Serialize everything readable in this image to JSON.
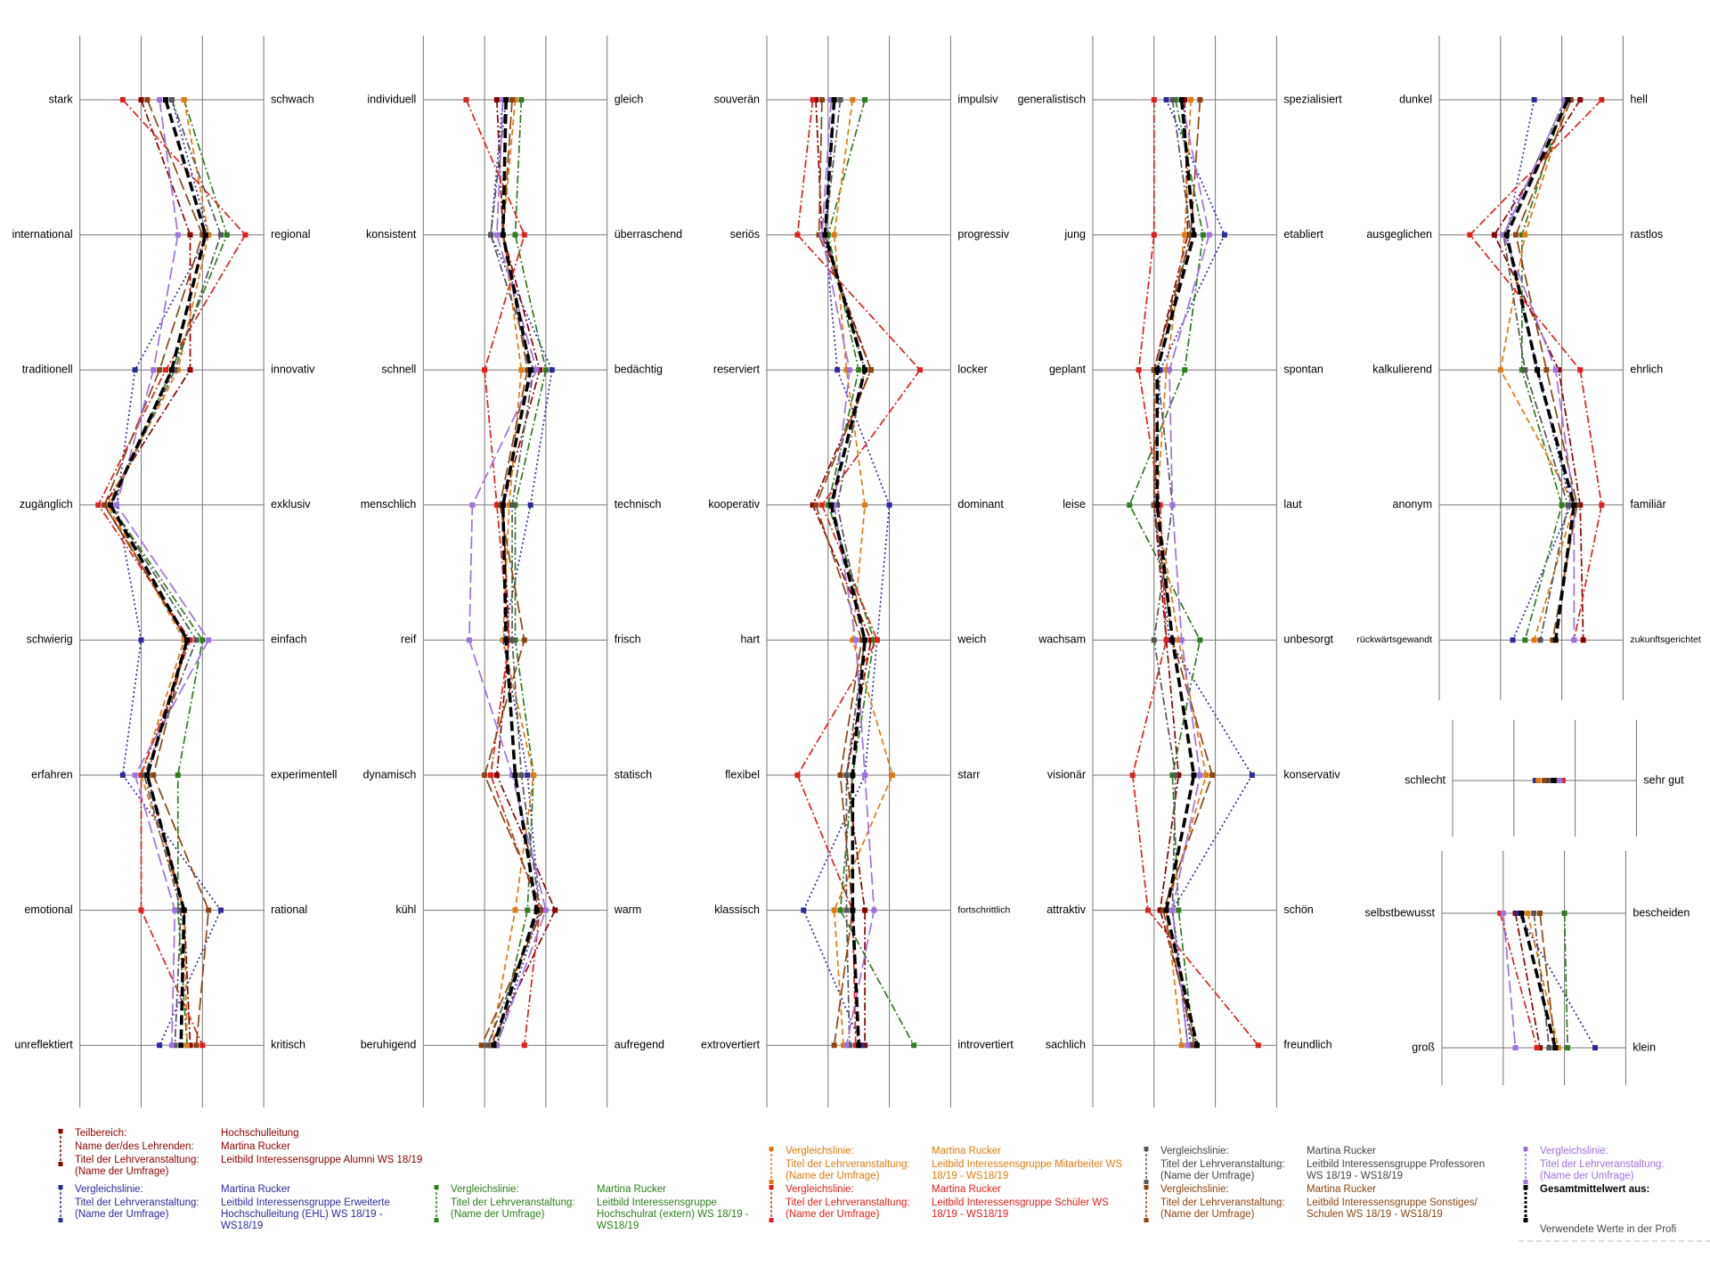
{
  "chart_data": {
    "type": "profile",
    "xlim": [
      1,
      4
    ],
    "xticks": [
      1,
      2,
      3,
      4
    ],
    "grid": true,
    "panels": [
      {
        "left": [
          "stark",
          "international",
          "traditionell",
          "zugänglich",
          "schwierig",
          "erfahren",
          "emotional",
          "unreflektiert"
        ],
        "right": [
          "schwach",
          "regional",
          "innovativ",
          "exklusiv",
          "einfach",
          "experimentell",
          "rational",
          "kritisch"
        ]
      },
      {
        "left": [
          "individuell",
          "konsistent",
          "schnell",
          "menschlich",
          "reif",
          "dynamisch",
          "kühl",
          "beruhigend"
        ],
        "right": [
          "gleich",
          "überraschend",
          "bedächtig",
          "technisch",
          "frisch",
          "statisch",
          "warm",
          "aufregend"
        ]
      },
      {
        "left": [
          "souverän",
          "seriös",
          "reserviert",
          "kooperativ",
          "hart",
          "flexibel",
          "klassisch",
          "extrovertiert"
        ],
        "right": [
          "impulsiv",
          "progressiv",
          "locker",
          "dominant",
          "weich",
          "starr",
          "fortschrittlich",
          "introvertiert"
        ]
      },
      {
        "left": [
          "generalistisch",
          "jung",
          "geplant",
          "leise",
          "wachsam",
          "visionär",
          "attraktiv",
          "sachlich"
        ],
        "right": [
          "spezialisiert",
          "etabliert",
          "spontan",
          "laut",
          "unbesorgt",
          "konservativ",
          "schön",
          "freundlich"
        ]
      },
      {
        "left": [
          "dunkel",
          "ausgeglichen",
          "kalkulierend",
          "anonym",
          "rückwärtsgewandt"
        ],
        "right": [
          "hell",
          "rastlos",
          "ehrlich",
          "familiär",
          "zukunftsgerichtet"
        ]
      },
      {
        "left": [
          "schlecht"
        ],
        "right": [
          "sehr gut"
        ]
      },
      {
        "left": [
          "selbstbewusst",
          "groß"
        ],
        "right": [
          "bescheiden",
          "klein"
        ]
      }
    ],
    "series": [
      {
        "color": "#8b0000",
        "line_style": "dashdot",
        "legend_rows": [
          [
            "Teilbereich:",
            "Hochschulleitung"
          ],
          [
            "Name der/des Lehrenden:",
            "Martina Rucker"
          ],
          [
            "Titel der Lehrveranstaltung: (Name der Umfrage)",
            "Leitbild Interessensgruppe Alumni WS 18/19"
          ]
        ],
        "values": [
          [
            2.0,
            2.8,
            2.8,
            1.4,
            2.75,
            2.1,
            2.7,
            2.8
          ],
          [
            2.2,
            2.3,
            2.9,
            2.3,
            2.4,
            2.2,
            3.15,
            2.1
          ],
          [
            1.8,
            1.9,
            2.7,
            1.75,
            2.7,
            2.3,
            2.6,
            2.6
          ],
          [
            2.5,
            2.55,
            2.0,
            2.0,
            2.2,
            2.4,
            2.1,
            2.7
          ],
          [
            3.3,
            1.9,
            2.95,
            3.3,
            3.35
          ],
          [
            2.55
          ],
          [
            2.2,
            2.6
          ]
        ]
      },
      {
        "color": "#2b2b9f",
        "line_style": "dotted",
        "legend_rows": [
          [
            "Vergleichslinie:",
            "Martina Rucker"
          ],
          [
            "Titel der Lehrveranstaltung: (Name der Umfrage)",
            "Leitbild Interessensgruppe Erweiterte Hochschulleitung (EHL) WS 18/19 - WS18/19"
          ]
        ],
        "values": [
          [
            2.5,
            3.1,
            1.9,
            1.6,
            2.0,
            1.7,
            3.3,
            2.3
          ],
          [
            2.3,
            2.1,
            3.1,
            2.75,
            2.3,
            2.7,
            2.9,
            2.2
          ],
          [
            2.1,
            1.95,
            2.15,
            3.0,
            2.8,
            2.6,
            1.6,
            2.55
          ],
          [
            2.2,
            3.15,
            2.1,
            2.0,
            2.25,
            3.6,
            2.3,
            2.6
          ],
          [
            2.55,
            2.1,
            2.6,
            3.15,
            2.2
          ],
          [
            2.35
          ],
          [
            2.25,
            3.5
          ]
        ]
      },
      {
        "color": "#2e7d1e",
        "line_style": "dashdot",
        "legend_rows": [
          [
            "Vergleichslinie:",
            "Martina Rucker"
          ],
          [
            "Titel der Lehrveranstaltung: (Name der Umfrage)",
            "Leitbild Interessensgruppe Hochschulrat (extern) WS 18/19 - WS18/19"
          ]
        ],
        "values": [
          [
            2.7,
            3.4,
            2.5,
            1.5,
            3.0,
            2.6,
            2.6,
            2.75
          ],
          [
            2.6,
            2.5,
            3.0,
            2.5,
            2.5,
            2.8,
            2.7,
            2.2
          ],
          [
            2.6,
            2.0,
            2.5,
            2.0,
            2.75,
            2.4,
            2.2,
            3.4
          ],
          [
            2.35,
            2.8,
            2.5,
            1.6,
            2.75,
            2.3,
            2.4,
            2.65
          ],
          [
            3.05,
            2.35,
            2.35,
            3.0,
            2.4
          ],
          [
            2.7
          ],
          [
            3.0,
            3.05
          ]
        ]
      },
      {
        "color": "#e07b10",
        "line_style": "dashed",
        "legend_rows": [
          [
            "Vergleichslinie:",
            "Martina Rucker"
          ],
          [
            "Titel der Lehrveranstaltung: (Name der Umfrage)",
            "Leitbild Interessensgruppe Mitarbeiter WS 18/19 - WS18/19"
          ]
        ],
        "values": [
          [
            2.7,
            3.1,
            2.6,
            1.45,
            2.7,
            2.0,
            2.7,
            2.75
          ],
          [
            2.5,
            2.3,
            2.6,
            2.4,
            2.3,
            2.8,
            2.5,
            2.1
          ],
          [
            2.4,
            2.1,
            2.3,
            2.6,
            2.4,
            3.05,
            2.1,
            2.25
          ],
          [
            2.6,
            2.5,
            2.2,
            2.05,
            2.4,
            2.85,
            2.2,
            2.45
          ],
          [
            3.1,
            2.4,
            2.0,
            3.2,
            2.55
          ],
          [
            2.4
          ],
          [
            2.4,
            2.9
          ]
        ]
      },
      {
        "color": "#e0201c",
        "line_style": "dashdot",
        "legend_rows": [
          [
            "Vergleichslinie:",
            "Martina Rucker"
          ],
          [
            "Titel der Lehrveranstaltung: (Name der Umfrage)",
            "Leitbild Interessensgruppe Schüler WS 18/19 - WS18/19"
          ]
        ],
        "values": [
          [
            1.7,
            3.7,
            2.4,
            1.3,
            2.8,
            2.0,
            2.0,
            3.0
          ],
          [
            1.7,
            2.65,
            2.0,
            2.2,
            2.4,
            2.1,
            2.9,
            2.65
          ],
          [
            1.75,
            1.5,
            3.5,
            1.9,
            2.8,
            1.5,
            2.4,
            2.45
          ],
          [
            2.0,
            2.0,
            1.75,
            2.1,
            2.2,
            1.65,
            1.9,
            3.7
          ],
          [
            3.65,
            1.5,
            3.3,
            3.65,
            3.2
          ],
          [
            2.8
          ],
          [
            1.95,
            2.55
          ]
        ]
      },
      {
        "color": "#555555",
        "line_style": "dashdot",
        "legend_rows": [
          [
            "Vergleichslinie:",
            "Martina Rucker"
          ],
          [
            "Titel der Lehrveranstaltung: (Name der Umfrage)",
            "Leitbild Interessensgruppe Professoren WS 18/19 - WS18/19"
          ]
        ],
        "values": [
          [
            2.5,
            3.3,
            2.55,
            1.5,
            2.9,
            2.05,
            2.65,
            2.55
          ],
          [
            2.35,
            2.1,
            2.8,
            2.45,
            2.45,
            2.6,
            2.9,
            2.05
          ],
          [
            2.2,
            1.95,
            2.6,
            2.15,
            2.6,
            2.3,
            2.3,
            2.35
          ],
          [
            2.3,
            2.6,
            2.05,
            2.3,
            2.0,
            2.35,
            2.3,
            2.55
          ],
          [
            3.05,
            2.05,
            2.4,
            3.1,
            2.65
          ],
          [
            2.6
          ],
          [
            2.5,
            2.75
          ]
        ]
      },
      {
        "color": "#8b4513",
        "line_style": "longdash",
        "legend_rows": [
          [
            "Vergleichslinie:",
            "Martina Rucker"
          ],
          [
            "Titel der Lehrveranstaltung: (Name der Umfrage)",
            "Leitbild Interessensgruppe Sonstiges/ Schulen WS 18/19 - WS18/19"
          ]
        ],
        "values": [
          [
            2.1,
            3.0,
            2.3,
            1.4,
            2.75,
            2.2,
            3.1,
            2.9
          ],
          [
            2.45,
            2.3,
            2.7,
            2.25,
            2.65,
            2.0,
            2.95,
            1.95
          ],
          [
            1.9,
            1.85,
            2.7,
            1.8,
            2.55,
            2.2,
            2.4,
            2.1
          ],
          [
            2.75,
            2.6,
            2.0,
            2.0,
            2.3,
            2.95,
            2.15,
            2.65
          ],
          [
            3.15,
            2.25,
            2.75,
            3.25,
            2.85
          ],
          [
            2.5
          ],
          [
            2.6,
            2.85
          ]
        ]
      },
      {
        "color": "#a070e0",
        "line_style": "longdash",
        "legend_rows": [
          [
            "Vergleichslinie:"
          ],
          [
            "Titel der Lehrveranstaltung: (Name der Umfrage)"
          ]
        ],
        "values": [
          [
            2.3,
            2.6,
            2.2,
            1.6,
            3.1,
            1.9,
            2.55,
            2.5
          ],
          [
            2.3,
            2.2,
            2.85,
            1.8,
            1.75,
            2.45,
            3.0,
            2.2
          ],
          [
            2.05,
            1.9,
            2.35,
            2.1,
            2.45,
            2.6,
            2.75,
            2.3
          ],
          [
            2.45,
            2.9,
            2.25,
            2.3,
            2.45,
            2.75,
            2.3,
            2.55
          ],
          [
            3.05,
            2.05,
            2.9,
            3.2,
            3.2
          ],
          [
            2.75
          ],
          [
            2.0,
            2.2
          ]
        ]
      },
      {
        "color": "#000000",
        "line_style": "bold",
        "legend_rows": [
          [
            "Gesamtmittelwert aus:"
          ]
        ],
        "values": [
          [
            2.4,
            3.05,
            2.5,
            1.5,
            2.75,
            2.1,
            2.7,
            2.65
          ],
          [
            2.35,
            2.3,
            2.75,
            2.3,
            2.35,
            2.5,
            2.85,
            2.15
          ],
          [
            2.1,
            1.95,
            2.6,
            2.05,
            2.6,
            2.4,
            2.4,
            2.5
          ],
          [
            2.45,
            2.65,
            2.05,
            2.05,
            2.3,
            2.65,
            2.2,
            2.7
          ],
          [
            3.1,
            2.1,
            2.6,
            3.2,
            2.9
          ],
          [
            2.65
          ],
          [
            2.3,
            2.85
          ]
        ]
      }
    ],
    "footer": "Verwendete Werte in der Profi"
  }
}
